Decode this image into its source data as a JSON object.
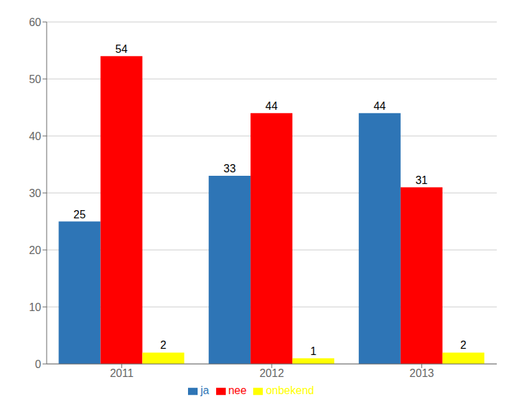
{
  "chart_data": {
    "type": "bar",
    "categories": [
      "2011",
      "2012",
      "2013"
    ],
    "series": [
      {
        "name": "ja",
        "color": "#2E75B6",
        "values": [
          25,
          33,
          44
        ]
      },
      {
        "name": "nee",
        "color": "#FF0000",
        "values": [
          54,
          44,
          31
        ]
      },
      {
        "name": "onbekend",
        "color": "#FFFF00",
        "values": [
          2,
          1,
          2
        ]
      }
    ],
    "ylim": [
      0,
      60
    ],
    "yticks": [
      0,
      10,
      20,
      30,
      40,
      50,
      60
    ],
    "grid": true,
    "legend": "bottom",
    "data_labels": true
  }
}
